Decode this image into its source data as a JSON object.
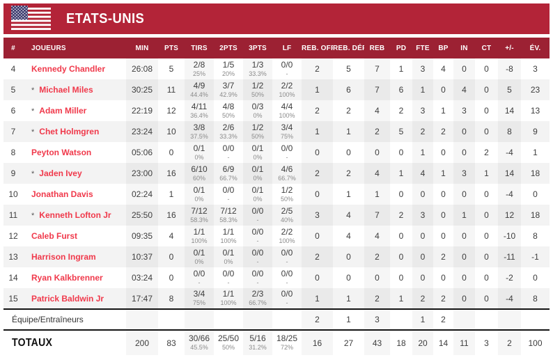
{
  "team": {
    "name": "ETATS-UNIS",
    "flag": "usa-flag"
  },
  "colors": {
    "banner_red": "#B32438",
    "header_red": "#9C2133",
    "player_name_red": "#F0394B",
    "flag_red": "#B22234",
    "flag_blue": "#3C3B6E"
  },
  "table": {
    "columns": [
      "#",
      "JOUEURS",
      "MIN",
      "PTS",
      "TIRS",
      "2PTS",
      "3PTS",
      "LF",
      "REB. OFF.",
      "REB. DÉF.",
      "REB",
      "PD",
      "FTE",
      "BP",
      "IN",
      "CT",
      "+/-",
      "ÉV."
    ],
    "players": [
      {
        "num": "4",
        "starter": false,
        "name": "Kennedy Chandler",
        "min": "26:08",
        "pts": "5",
        "tirs": "2/8",
        "tirs_pct": "25%",
        "p2": "1/5",
        "p2_pct": "20%",
        "p3": "1/3",
        "p3_pct": "33.3%",
        "lf": "0/0",
        "lf_pct": "-",
        "reb_off": "2",
        "reb_def": "5",
        "reb": "7",
        "pd": "1",
        "fte": "3",
        "bp": "4",
        "in": "0",
        "ct": "0",
        "pm": "-8",
        "ev": "3"
      },
      {
        "num": "5",
        "starter": true,
        "name": "Michael Miles",
        "min": "30:25",
        "pts": "11",
        "tirs": "4/9",
        "tirs_pct": "44.4%",
        "p2": "3/7",
        "p2_pct": "42.9%",
        "p3": "1/2",
        "p3_pct": "50%",
        "lf": "2/2",
        "lf_pct": "100%",
        "reb_off": "1",
        "reb_def": "6",
        "reb": "7",
        "pd": "6",
        "fte": "1",
        "bp": "0",
        "in": "4",
        "ct": "0",
        "pm": "5",
        "ev": "23"
      },
      {
        "num": "6",
        "starter": true,
        "name": "Adam Miller",
        "min": "22:19",
        "pts": "12",
        "tirs": "4/11",
        "tirs_pct": "36.4%",
        "p2": "4/8",
        "p2_pct": "50%",
        "p3": "0/3",
        "p3_pct": "0%",
        "lf": "4/4",
        "lf_pct": "100%",
        "reb_off": "2",
        "reb_def": "2",
        "reb": "4",
        "pd": "2",
        "fte": "3",
        "bp": "1",
        "in": "3",
        "ct": "0",
        "pm": "14",
        "ev": "13"
      },
      {
        "num": "7",
        "starter": true,
        "name": "Chet Holmgren",
        "min": "23:24",
        "pts": "10",
        "tirs": "3/8",
        "tirs_pct": "37.5%",
        "p2": "2/6",
        "p2_pct": "33.3%",
        "p3": "1/2",
        "p3_pct": "50%",
        "lf": "3/4",
        "lf_pct": "75%",
        "reb_off": "1",
        "reb_def": "1",
        "reb": "2",
        "pd": "5",
        "fte": "2",
        "bp": "2",
        "in": "0",
        "ct": "0",
        "pm": "8",
        "ev": "9"
      },
      {
        "num": "8",
        "starter": false,
        "name": "Peyton Watson",
        "min": "05:06",
        "pts": "0",
        "tirs": "0/1",
        "tirs_pct": "0%",
        "p2": "0/0",
        "p2_pct": "-",
        "p3": "0/1",
        "p3_pct": "0%",
        "lf": "0/0",
        "lf_pct": "-",
        "reb_off": "0",
        "reb_def": "0",
        "reb": "0",
        "pd": "0",
        "fte": "1",
        "bp": "0",
        "in": "0",
        "ct": "2",
        "pm": "-4",
        "ev": "1"
      },
      {
        "num": "9",
        "starter": true,
        "name": "Jaden Ivey",
        "min": "23:00",
        "pts": "16",
        "tirs": "6/10",
        "tirs_pct": "60%",
        "p2": "6/9",
        "p2_pct": "66.7%",
        "p3": "0/1",
        "p3_pct": "0%",
        "lf": "4/6",
        "lf_pct": "66.7%",
        "reb_off": "2",
        "reb_def": "2",
        "reb": "4",
        "pd": "1",
        "fte": "4",
        "bp": "1",
        "in": "3",
        "ct": "1",
        "pm": "14",
        "ev": "18"
      },
      {
        "num": "10",
        "starter": false,
        "name": "Jonathan Davis",
        "min": "02:24",
        "pts": "1",
        "tirs": "0/1",
        "tirs_pct": "0%",
        "p2": "0/0",
        "p2_pct": "-",
        "p3": "0/1",
        "p3_pct": "0%",
        "lf": "1/2",
        "lf_pct": "50%",
        "reb_off": "0",
        "reb_def": "1",
        "reb": "1",
        "pd": "0",
        "fte": "0",
        "bp": "0",
        "in": "0",
        "ct": "0",
        "pm": "-4",
        "ev": "0"
      },
      {
        "num": "11",
        "starter": true,
        "name": "Kenneth Lofton Jr",
        "min": "25:50",
        "pts": "16",
        "tirs": "7/12",
        "tirs_pct": "58.3%",
        "p2": "7/12",
        "p2_pct": "58.3%",
        "p3": "0/0",
        "p3_pct": "-",
        "lf": "2/5",
        "lf_pct": "40%",
        "reb_off": "3",
        "reb_def": "4",
        "reb": "7",
        "pd": "2",
        "fte": "3",
        "bp": "0",
        "in": "1",
        "ct": "0",
        "pm": "12",
        "ev": "18"
      },
      {
        "num": "12",
        "starter": false,
        "name": "Caleb Furst",
        "min": "09:35",
        "pts": "4",
        "tirs": "1/1",
        "tirs_pct": "100%",
        "p2": "1/1",
        "p2_pct": "100%",
        "p3": "0/0",
        "p3_pct": "-",
        "lf": "2/2",
        "lf_pct": "100%",
        "reb_off": "0",
        "reb_def": "4",
        "reb": "4",
        "pd": "0",
        "fte": "0",
        "bp": "0",
        "in": "0",
        "ct": "0",
        "pm": "-10",
        "ev": "8"
      },
      {
        "num": "13",
        "starter": false,
        "name": "Harrison Ingram",
        "min": "10:37",
        "pts": "0",
        "tirs": "0/1",
        "tirs_pct": "0%",
        "p2": "0/1",
        "p2_pct": "0%",
        "p3": "0/0",
        "p3_pct": "-",
        "lf": "0/0",
        "lf_pct": "-",
        "reb_off": "2",
        "reb_def": "0",
        "reb": "2",
        "pd": "0",
        "fte": "0",
        "bp": "2",
        "in": "0",
        "ct": "0",
        "pm": "-11",
        "ev": "-1"
      },
      {
        "num": "14",
        "starter": false,
        "name": "Ryan Kalkbrenner",
        "min": "03:24",
        "pts": "0",
        "tirs": "0/0",
        "tirs_pct": "-",
        "p2": "0/0",
        "p2_pct": "-",
        "p3": "0/0",
        "p3_pct": "-",
        "lf": "0/0",
        "lf_pct": "-",
        "reb_off": "0",
        "reb_def": "0",
        "reb": "0",
        "pd": "0",
        "fte": "0",
        "bp": "0",
        "in": "0",
        "ct": "0",
        "pm": "-2",
        "ev": "0"
      },
      {
        "num": "15",
        "starter": false,
        "name": "Patrick Baldwin Jr",
        "min": "17:47",
        "pts": "8",
        "tirs": "3/4",
        "tirs_pct": "75%",
        "p2": "1/1",
        "p2_pct": "100%",
        "p3": "2/3",
        "p3_pct": "66.7%",
        "lf": "0/0",
        "lf_pct": "-",
        "reb_off": "1",
        "reb_def": "1",
        "reb": "2",
        "pd": "1",
        "fte": "2",
        "bp": "2",
        "in": "0",
        "ct": "0",
        "pm": "-4",
        "ev": "8"
      }
    ],
    "team_row": {
      "label": "Équipe/Entraîneurs",
      "reb_off": "2",
      "reb_def": "1",
      "reb": "3",
      "fte": "1",
      "bp": "2"
    },
    "totals": {
      "label": "TOTAUX",
      "min": "200",
      "pts": "83",
      "tirs": "30/66",
      "tirs_pct": "45.5%",
      "p2": "25/50",
      "p2_pct": "50%",
      "p3": "5/16",
      "p3_pct": "31.2%",
      "lf": "18/25",
      "lf_pct": "72%",
      "reb_off": "16",
      "reb_def": "27",
      "reb": "43",
      "pd": "18",
      "fte": "20",
      "bp": "14",
      "in": "11",
      "ct": "3",
      "pm": "2",
      "ev": "100"
    }
  }
}
